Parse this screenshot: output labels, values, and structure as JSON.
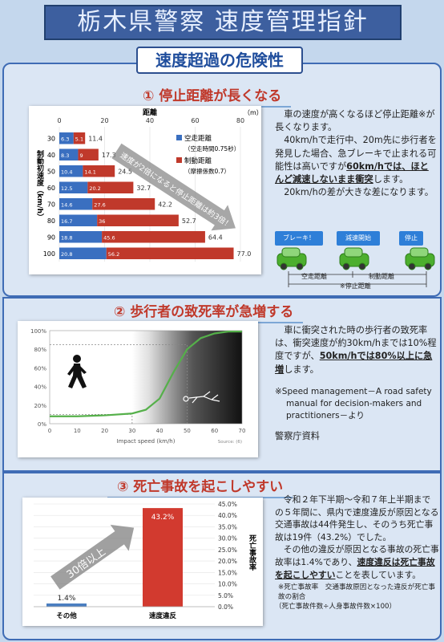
{
  "title": "栃木県警察 速度管理指針",
  "subtitle": "速度超過の危険性",
  "s1": {
    "heading": "① 停止距離が長くなる",
    "text1": "車の速度が高くなるほど停止距離※が長くなります。",
    "text2": "40km/hで走行中、20m先に歩行者を発見した場合、急ブレーキで止まれる可能性は高いですが",
    "text3": "60km/hでは、ほとんど減速しないまま衝突",
    "text4": "します。",
    "text5": "20km/hの差が大きな差になります。",
    "stages": [
      "ブレーキ！",
      "減速開始",
      "停止"
    ],
    "dist_labels": [
      "空走距離",
      "制動距離"
    ],
    "total_label": "※停止距離"
  },
  "chart_data": [
    {
      "type": "bar",
      "stacked": true,
      "orientation": "horizontal",
      "title": "距離",
      "unit": "（m）",
      "xlim": [
        0,
        80
      ],
      "xticks": [
        0,
        20,
        40,
        60,
        80
      ],
      "ylabel": "制動初速度（km/h）",
      "categories": [
        "30",
        "40",
        "50",
        "60",
        "70",
        "80",
        "90",
        "100"
      ],
      "series": [
        {
          "name": "空走距離",
          "note": "（空走時間0.75秒）",
          "color": "#3a6fc0",
          "values": [
            6.3,
            8.3,
            10.4,
            12.5,
            14.6,
            16.7,
            18.8,
            20.8
          ]
        },
        {
          "name": "制動距離",
          "note": "（摩擦係数0.7）",
          "color": "#c0392b",
          "values": [
            5.1,
            9.0,
            14.1,
            20.2,
            27.6,
            36.0,
            45.6,
            56.2
          ]
        }
      ],
      "totals": [
        11.4,
        17.3,
        24.5,
        32.7,
        42.2,
        52.7,
        64.4,
        77.0
      ],
      "annotation": "速度が2倍になると停止距離は約3倍！"
    },
    {
      "type": "line",
      "xlabel": "Impact speed (km/h)",
      "xlim": [
        0,
        70
      ],
      "xticks": [
        0,
        10,
        20,
        30,
        40,
        50,
        60,
        70
      ],
      "ylim": [
        0,
        100
      ],
      "yticks": [
        "0%",
        "20%",
        "40%",
        "60%",
        "80%",
        "100%"
      ],
      "source": "Source: (6)",
      "series": [
        {
          "color": "#55b04a",
          "x": [
            0,
            10,
            20,
            30,
            35,
            40,
            45,
            50,
            55,
            60,
            65,
            70
          ],
          "y": [
            8,
            8,
            9,
            11,
            15,
            27,
            55,
            80,
            92,
            97,
            99,
            99
          ]
        }
      ],
      "markers": [
        {
          "x": 30,
          "y": 10
        },
        {
          "x": 50,
          "y": 85
        }
      ]
    },
    {
      "type": "bar",
      "categories": [
        "その他",
        "速度違反"
      ],
      "values": [
        1.4,
        43.2
      ],
      "value_labels": [
        "1.4%",
        "43.2%"
      ],
      "ylim": [
        0,
        45
      ],
      "yticks": [
        "0.0%",
        "5.0%",
        "10.0%",
        "15.0%",
        "20.0%",
        "25.0%",
        "30.0%",
        "35.0%",
        "40.0%",
        "45.0%"
      ],
      "ylabel": "死亡事故率",
      "annotation": "30倍以上",
      "colors": [
        "#4a7ec0",
        "#d23a2f"
      ]
    }
  ],
  "s2": {
    "heading": "② 歩行者の致死率が急増する",
    "text1": "車に衝突された時の歩行者の致死率は、衝突速度が約30km/hまでは10%程度ですが、",
    "text2": "50km/hでは80%以上に急増",
    "text3": "します。",
    "ref": "※Speed management－A road safety manual for decision-makers and practitioners－より",
    "src": "警察庁資料"
  },
  "s3": {
    "heading": "③ 死亡事故を起こしやすい",
    "text1": "令和２年下半期～令和７年上半期までの５年間に、県内で速度違反が原因となる交通事故は44件発生し、そのうち死亡事故は19件（43.2%）でした。",
    "text2": "その他の違反が原因となる事故の死亡事故率は1.4%であり、",
    "text3": "速度違反は死亡事故を起こしやすい",
    "text4": "ことを表しています。",
    "note1": "※死亡事故率　交通事故原因となった違反が死亡事故の割合",
    "note2": "（死亡事故件数÷人身事故件数×100）"
  }
}
